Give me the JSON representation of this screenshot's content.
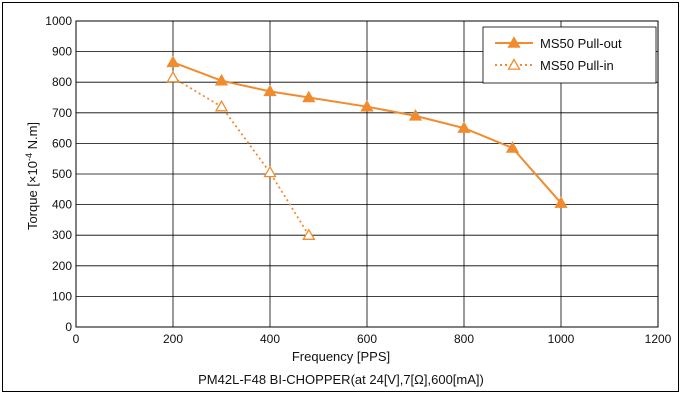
{
  "chart_data": {
    "type": "line",
    "caption": "PM42L-F48 BI-CHOPPER(at 24[V],7[Ω],600[mA])",
    "xlabel": "Frequency [PPS]",
    "ylabel_main": "Torque [×10",
    "ylabel_exp": "-4",
    "ylabel_unit": " N.m]",
    "xlim": [
      0,
      1200
    ],
    "ylim": [
      0,
      1000
    ],
    "x_ticks": [
      0,
      200,
      400,
      600,
      800,
      1000,
      1200
    ],
    "y_ticks": [
      0,
      100,
      200,
      300,
      400,
      500,
      600,
      700,
      800,
      900,
      1000
    ],
    "grid": true,
    "legend_position": "top-right",
    "series": [
      {
        "name": "MS50  Pull-out",
        "color": "#f08c2e",
        "style": "solid",
        "marker": "filled-triangle",
        "x": [
          200,
          300,
          400,
          480,
          600,
          700,
          800,
          900,
          1000
        ],
        "y": [
          865,
          805,
          770,
          750,
          720,
          690,
          650,
          585,
          405
        ]
      },
      {
        "name": "MS50  Pull-in",
        "color": "#f08c2e",
        "style": "dotted",
        "marker": "open-triangle",
        "x": [
          200,
          300,
          400,
          480
        ],
        "y": [
          815,
          720,
          505,
          300
        ]
      }
    ]
  }
}
